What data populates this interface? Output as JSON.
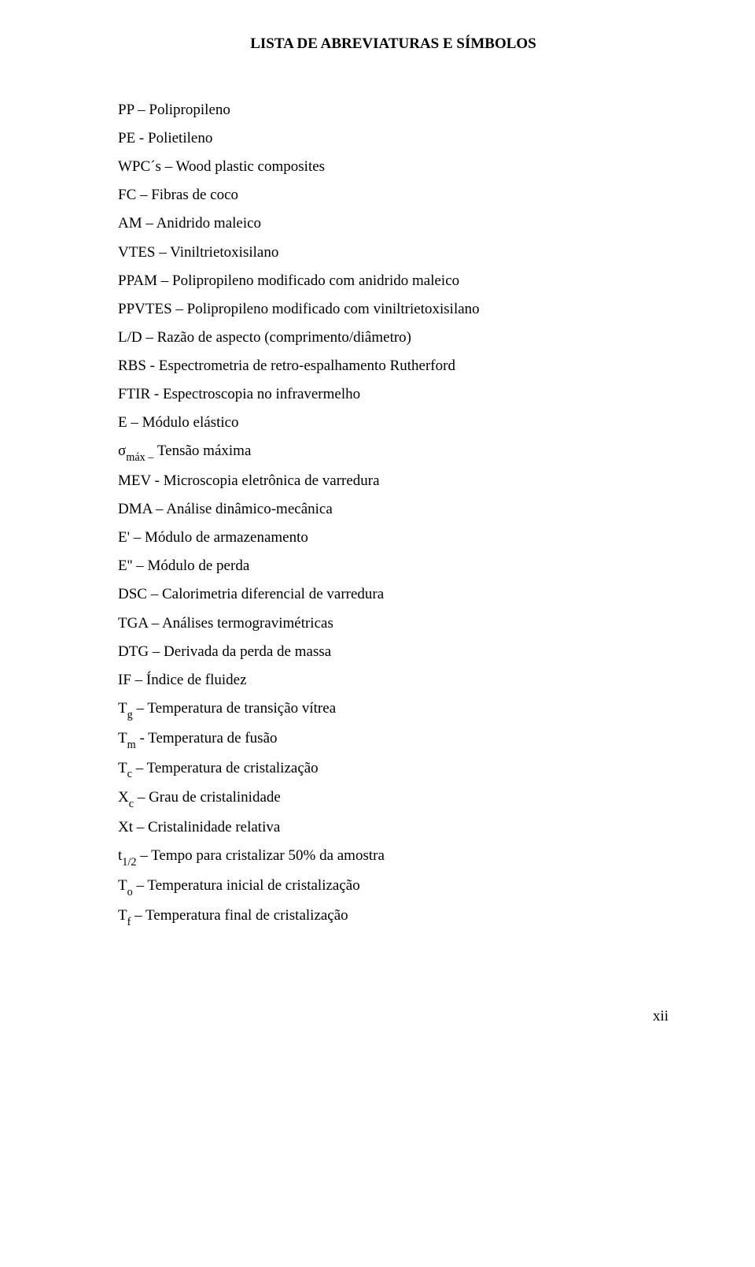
{
  "title": "LISTA DE ABREVIATURAS E SÍMBOLOS",
  "entries": {
    "e0": "PP – Polipropileno",
    "e1": "PE - Polietileno",
    "e2": "WPC´s – Wood plastic composites",
    "e3": "FC – Fibras de coco",
    "e4": "AM – Anidrido maleico",
    "e5": "VTES – Viniltrietoxisilano",
    "e6": "PPAM – Polipropileno modificado com anidrido maleico",
    "e7": "PPVTES – Polipropileno modificado com viniltrietoxisilano",
    "e8": "L/D – Razão de aspecto (comprimento/diâmetro)",
    "e9": "RBS - Espectrometria de retro-espalhamento Rutherford",
    "e10": "FTIR - Espectroscopia no infravermelho",
    "e11": "E – Módulo elástico",
    "e12_pre": "σ",
    "e12_sub": "máx –",
    "e12_post": " Tensão máxima",
    "e13": "MEV - Microscopia eletrônica de varredura",
    "e14": "DMA – Análise dinâmico-mecânica",
    "e15": "E' – Módulo de armazenamento",
    "e16": "E'' – Módulo de perda",
    "e17": "DSC – Calorimetria diferencial de varredura",
    "e18": "TGA – Análises termogravimétricas",
    "e19": "DTG – Derivada da perda de massa",
    "e20": "IF – Índice de fluidez",
    "e21_pre": "T",
    "e21_sub": "g",
    "e21_post": " – Temperatura de transição vítrea",
    "e22_pre": "T",
    "e22_sub": "m",
    "e22_post": " - Temperatura de fusão",
    "e23_pre": "T",
    "e23_sub": "c",
    "e23_post": " – Temperatura de cristalização",
    "e24_pre": "X",
    "e24_sub": "c",
    "e24_post": " – Grau de cristalinidade",
    "e25": "Xt – Cristalinidade relativa",
    "e26_pre": "t",
    "e26_sub": "1/2",
    "e26_post": " – Tempo para cristalizar 50% da amostra",
    "e27_pre": "T",
    "e27_sub": "o",
    "e27_post": " – Temperatura inicial de cristalização",
    "e28_pre": "T",
    "e28_sub": "f",
    "e28_post": " – Temperatura final de cristalização"
  },
  "page_number": "xii"
}
